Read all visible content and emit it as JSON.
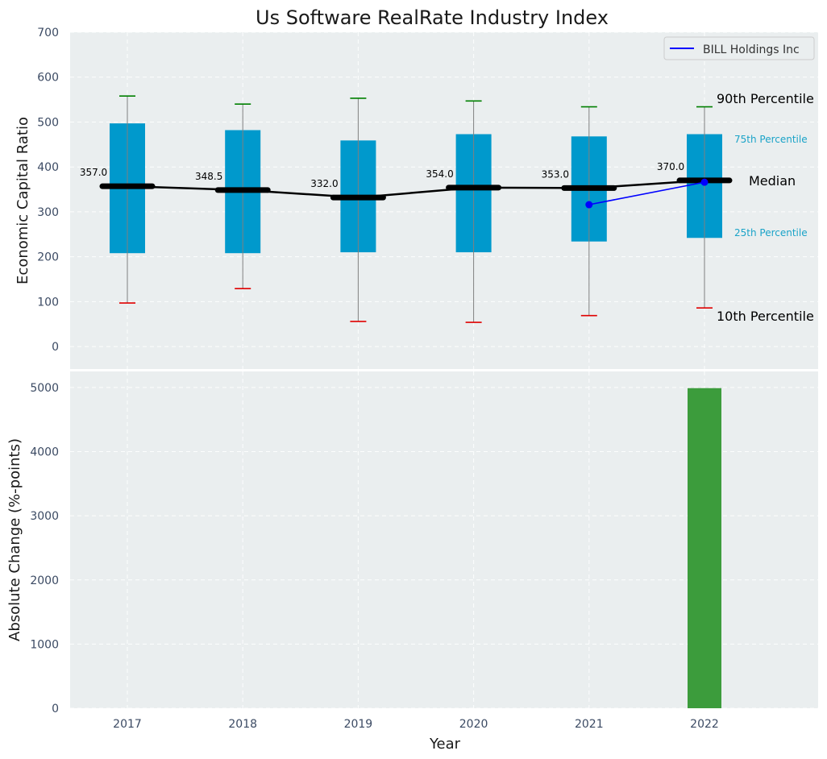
{
  "chart_data": [
    {
      "type": "box",
      "title": "Us Software RealRate Industry Index",
      "ylabel": "Economic Capital Ratio",
      "ylim": [
        -50,
        700
      ],
      "yticks": [
        0,
        100,
        200,
        300,
        400,
        500,
        600,
        700
      ],
      "grid": true,
      "categories": [
        "2017",
        "2018",
        "2019",
        "2020",
        "2021",
        "2022"
      ],
      "p10": [
        97,
        129,
        56,
        54,
        69,
        86
      ],
      "p25": [
        208,
        208,
        210,
        210,
        234,
        242
      ],
      "median": [
        357.0,
        348.5,
        332.0,
        354.0,
        353.0,
        370.0
      ],
      "median_labels": [
        "357.0",
        "348.5",
        "332.0",
        "354.0",
        "353.0",
        "370.0"
      ],
      "p75": [
        497,
        482,
        459,
        473,
        468,
        473
      ],
      "p90": [
        558,
        540,
        553,
        547,
        534,
        534
      ],
      "company_series": {
        "name": "BILL Holdings Inc",
        "x": [
          "2021",
          "2022"
        ],
        "values": [
          316,
          366
        ],
        "color": "#0000ff"
      },
      "legend": {
        "label": "BILL Holdings Inc",
        "placement": "top-right"
      },
      "annotations": {
        "p90": "90th Percentile",
        "p75": "75th Percentile",
        "median": "Median",
        "p25": "25th Percentile",
        "p10": "10th Percentile"
      },
      "colors": {
        "box": "#0099cc",
        "median_line": "#000000",
        "p90_cap": "#008000",
        "p10_cap": "#e00000",
        "whisker": "#808080",
        "plot_bg": "#eaeeef",
        "percentile_note": "#1aa3c8"
      }
    },
    {
      "type": "bar",
      "ylabel": "Absolute Change (%-points)",
      "xlabel": "Year",
      "ylim": [
        0,
        5250
      ],
      "yticks": [
        0,
        1000,
        2000,
        3000,
        4000,
        5000
      ],
      "grid": true,
      "categories": [
        "2017",
        "2018",
        "2019",
        "2020",
        "2021",
        "2022"
      ],
      "values": [
        null,
        null,
        null,
        null,
        null,
        4990
      ],
      "bar_color": "#3c9c3c"
    }
  ]
}
